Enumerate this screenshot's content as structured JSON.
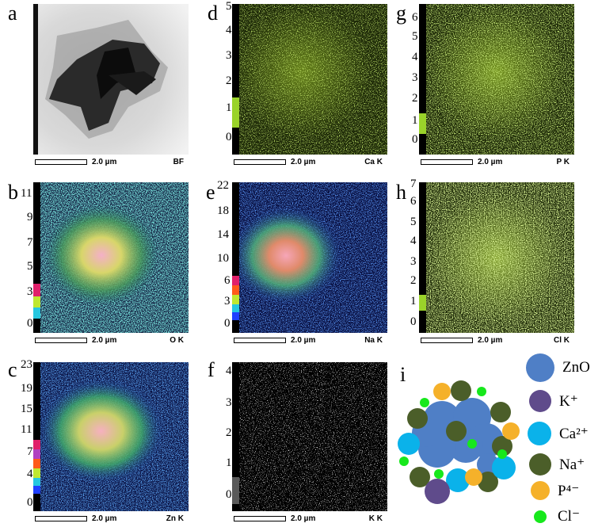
{
  "panels": [
    {
      "letter": "a",
      "scale": "2.0 µm",
      "element": "BF"
    },
    {
      "letter": "d",
      "scale": "2.0 µm",
      "element": "Ca K",
      "ticks": [
        "5",
        "4",
        "3",
        "2",
        "1",
        "0"
      ]
    },
    {
      "letter": "g",
      "scale": "2.0 µm",
      "element": "P K",
      "ticks": [
        "6",
        "5",
        "4",
        "3",
        "2",
        "1",
        "0"
      ]
    },
    {
      "letter": "b",
      "scale": "2.0 µm",
      "element": "O K",
      "ticks": [
        "11",
        "9",
        "7",
        "5",
        "3",
        "0"
      ]
    },
    {
      "letter": "e",
      "scale": "2.0 µm",
      "element": "Na K",
      "ticks": [
        "22",
        "18",
        "14",
        "10",
        "6",
        "3",
        "0"
      ]
    },
    {
      "letter": "h",
      "scale": "2.0 µm",
      "element": "Cl K",
      "ticks": [
        "7",
        "6",
        "5",
        "4",
        "3",
        "2",
        "1",
        "0"
      ]
    },
    {
      "letter": "c",
      "scale": "2.0 µm",
      "element": "Zn K",
      "ticks": [
        "23",
        "19",
        "15",
        "11",
        "7",
        "4",
        "0"
      ]
    },
    {
      "letter": "f",
      "scale": "2.0 µm",
      "element": "K K",
      "ticks": [
        "4",
        "3",
        "2",
        "1",
        "0"
      ]
    },
    {
      "letter": "i"
    }
  ],
  "legend": [
    {
      "label": "ZnO",
      "color": "#4f7fc6"
    },
    {
      "label": "K⁺",
      "color": "#5f4b8b"
    },
    {
      "label": "Ca²⁺",
      "color": "#0ab2ea"
    },
    {
      "label": "Na⁺",
      "color": "#4b5e29"
    },
    {
      "label": "P⁴⁻",
      "color": "#f5b12a"
    },
    {
      "label": "Cl⁻",
      "color": "#17e81c"
    }
  ]
}
